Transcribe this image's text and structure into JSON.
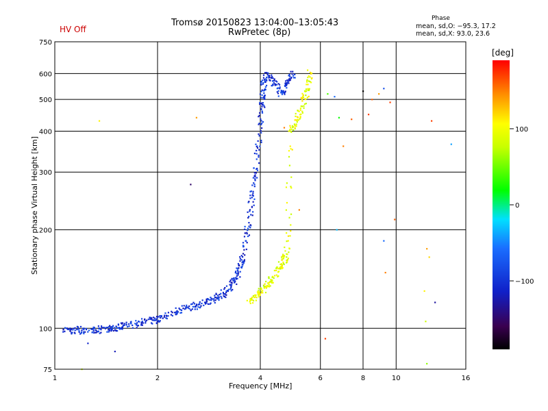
{
  "header": {
    "title_line1": "Tromsø 20150823 13:04:00–13:05:43",
    "title_line2": "RwPretec (8p)",
    "status": "HV Off",
    "phase_header": "Phase",
    "phase_stat_0": "mean, sd,O: −95.3, 17.2",
    "phase_stat_x": "mean, sd,X:  93.0, 23.6"
  },
  "colorbar": {
    "unit": "[deg]",
    "tick_labels": [
      "100",
      "0",
      "−100"
    ],
    "tick_values": [
      100,
      0,
      -100
    ],
    "range": [
      -190,
      190
    ]
  },
  "chart_data": {
    "type": "scatter",
    "title": "Tromsø 20150823 13:04:00–13:05:43",
    "subtitle": "RwPretec (8p)",
    "xlabel": "Frequency [MHz]",
    "ylabel": "Stationary phase Virtual Height [km]",
    "xscale": "log",
    "yscale": "log",
    "xlim": [
      1,
      16
    ],
    "ylim": [
      75,
      750
    ],
    "xticks": [
      1,
      2,
      4,
      6,
      8,
      10,
      16
    ],
    "yticks": [
      75,
      100,
      200,
      300,
      400,
      500,
      600,
      750
    ],
    "grid_x": [
      2,
      4,
      6,
      8,
      10
    ],
    "grid_y": [
      100,
      200,
      300,
      400,
      500,
      600
    ],
    "color_variable": "phase [deg]",
    "traces": [
      {
        "mode": "O",
        "phase": -100,
        "points": [
          [
            1.05,
            98
          ],
          [
            1.15,
            99
          ],
          [
            1.25,
            98
          ],
          [
            1.35,
            99
          ],
          [
            1.45,
            100
          ],
          [
            1.55,
            101
          ],
          [
            1.65,
            102
          ],
          [
            1.8,
            104
          ],
          [
            1.95,
            106
          ],
          [
            2.1,
            109
          ],
          [
            2.3,
            113
          ],
          [
            2.5,
            116
          ],
          [
            2.7,
            119
          ],
          [
            2.9,
            122
          ],
          [
            3.1,
            127
          ],
          [
            3.25,
            133
          ],
          [
            3.4,
            142
          ],
          [
            3.5,
            155
          ],
          [
            3.6,
            175
          ],
          [
            3.7,
            210
          ],
          [
            3.8,
            260
          ],
          [
            3.9,
            330
          ],
          [
            4.0,
            420
          ],
          [
            4.05,
            500
          ],
          [
            4.1,
            560
          ],
          [
            4.2,
            600
          ],
          [
            4.4,
            560
          ],
          [
            4.6,
            520
          ],
          [
            4.8,
            560
          ],
          [
            5.0,
            600
          ]
        ]
      },
      {
        "mode": "X",
        "phase": 93,
        "points": [
          [
            3.7,
            120
          ],
          [
            3.9,
            126
          ],
          [
            4.1,
            132
          ],
          [
            4.3,
            140
          ],
          [
            4.5,
            150
          ],
          [
            4.7,
            162
          ],
          [
            4.8,
            175
          ],
          [
            4.9,
            400
          ],
          [
            5.1,
            430
          ],
          [
            5.3,
            480
          ],
          [
            5.5,
            540
          ],
          [
            5.6,
            600
          ]
        ]
      }
    ],
    "scattered_points": [
      [
        1.35,
        430,
        110
      ],
      [
        2.6,
        440,
        140
      ],
      [
        2.5,
        275,
        -150
      ],
      [
        6.3,
        520,
        40
      ],
      [
        6.6,
        510,
        -60
      ],
      [
        6.8,
        440,
        20
      ],
      [
        7.0,
        360,
        150
      ],
      [
        7.4,
        435,
        160
      ],
      [
        8.0,
        530,
        -190
      ],
      [
        8.3,
        450,
        170
      ],
      [
        8.5,
        500,
        160
      ],
      [
        8.9,
        520,
        140
      ],
      [
        9.2,
        540,
        -80
      ],
      [
        9.6,
        490,
        170
      ],
      [
        12.7,
        430,
        170
      ],
      [
        14.5,
        365,
        -40
      ],
      [
        6.7,
        200,
        -30
      ],
      [
        5.2,
        230,
        150
      ],
      [
        9.2,
        185,
        -60
      ],
      [
        9.3,
        148,
        150
      ],
      [
        9.9,
        215,
        160
      ],
      [
        12.3,
        175,
        140
      ],
      [
        12.5,
        165,
        120
      ],
      [
        12.1,
        130,
        110
      ],
      [
        13.0,
        120,
        -130
      ],
      [
        12.2,
        105,
        80
      ],
      [
        12.3,
        78,
        60
      ],
      [
        6.2,
        93,
        170
      ],
      [
        4.7,
        410,
        150
      ],
      [
        1.5,
        85,
        -120
      ],
      [
        1.25,
        90,
        -110
      ],
      [
        1.2,
        75,
        80
      ]
    ],
    "legend": "colorbar right"
  }
}
